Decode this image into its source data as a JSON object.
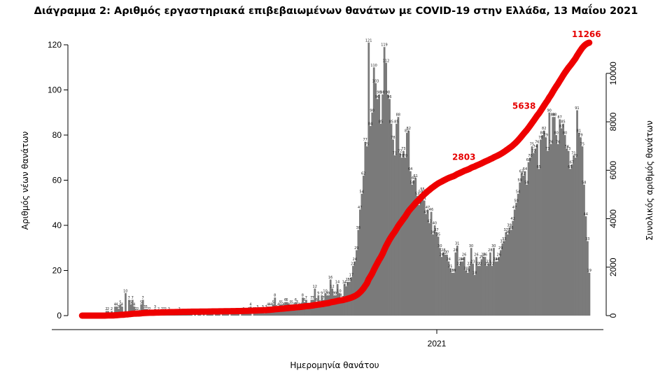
{
  "chart_data": {
    "type": "bar",
    "title": "Διάγραμμα 2: Αριθμός εργαστηριακά επιβεβαιωμένων θανάτων με COVID-19 στην Ελλάδα, 13 Μαΐου 2021",
    "xlabel": "Ημερομηνία θανάτου",
    "ylabel": "Αριθμός νέων θανάτων",
    "y2label": "Συνολικός αριθμός θανάτων",
    "x_tick_labels": [
      "2021"
    ],
    "ylim": [
      0,
      120
    ],
    "y_ticks": [
      0,
      20,
      40,
      60,
      80,
      100,
      120
    ],
    "y2lim": [
      0,
      11266
    ],
    "y2_ticks": [
      0,
      2000,
      4000,
      6000,
      8000,
      10000
    ],
    "daily_deaths": [
      0,
      0,
      0,
      0,
      0,
      0,
      0,
      0,
      0,
      0,
      0,
      0,
      0,
      0,
      2,
      2,
      0,
      2,
      0,
      4,
      4,
      3,
      5,
      4,
      0,
      10,
      0,
      7,
      5,
      7,
      4,
      2,
      2,
      1,
      5,
      7,
      3,
      3,
      2,
      2,
      1,
      0,
      3,
      1,
      2,
      1,
      2,
      2,
      2,
      1,
      2,
      1,
      1,
      1,
      1,
      1,
      2,
      1,
      1,
      1,
      1,
      1,
      1,
      1,
      0,
      1,
      0,
      1,
      1,
      0,
      1,
      0,
      1,
      1,
      1,
      1,
      0,
      1,
      1,
      1,
      0,
      1,
      1,
      1,
      1,
      0,
      1,
      1,
      1,
      1,
      1,
      0,
      1,
      2,
      1,
      1,
      2,
      4,
      0,
      2,
      2,
      3,
      2,
      2,
      3,
      1,
      3,
      4,
      4,
      4,
      5,
      8,
      3,
      4,
      5,
      5,
      4,
      6,
      6,
      4,
      5,
      5,
      4,
      6,
      5,
      4,
      4,
      8,
      6,
      7,
      4,
      4,
      7,
      7,
      12,
      6,
      9,
      5,
      9,
      7,
      10,
      9,
      9,
      16,
      12,
      9,
      9,
      14,
      10,
      8,
      7,
      14,
      13,
      15,
      15,
      17,
      22,
      24,
      29,
      38,
      47,
      54,
      62,
      77,
      75,
      121,
      84,
      90,
      110,
      103,
      96,
      98,
      85,
      98,
      119,
      112,
      98,
      96,
      85,
      78,
      71,
      85,
      88,
      72,
      70,
      73,
      70,
      81,
      82,
      64,
      58,
      60,
      61,
      53,
      49,
      54,
      55,
      51,
      45,
      47,
      41,
      46,
      36,
      40,
      37,
      35,
      30,
      26,
      28,
      27,
      27,
      24,
      21,
      19,
      19,
      28,
      31,
      22,
      24,
      24,
      26,
      20,
      19,
      22,
      30,
      23,
      18,
      26,
      22,
      22,
      25,
      26,
      26,
      22,
      23,
      28,
      22,
      30,
      24,
      24,
      26,
      29,
      32,
      33,
      37,
      36,
      39,
      38,
      42,
      47,
      50,
      54,
      59,
      63,
      62,
      64,
      58,
      68,
      70,
      75,
      72,
      74,
      76,
      65,
      78,
      80,
      82,
      79,
      73,
      90,
      76,
      88,
      88,
      80,
      76,
      87,
      83,
      85,
      80,
      74,
      73,
      65,
      67,
      71,
      70,
      91,
      81,
      79,
      75,
      58,
      44,
      33,
      19
    ],
    "cumulative_labels": [
      {
        "text": "2803",
        "day": 229
      },
      {
        "text": "5638",
        "day": 262
      },
      {
        "text": "11266",
        "day": 355
      }
    ],
    "total": 11266,
    "colors": {
      "bars": "#7a7a7a",
      "cumulative": "#ee0000"
    }
  }
}
